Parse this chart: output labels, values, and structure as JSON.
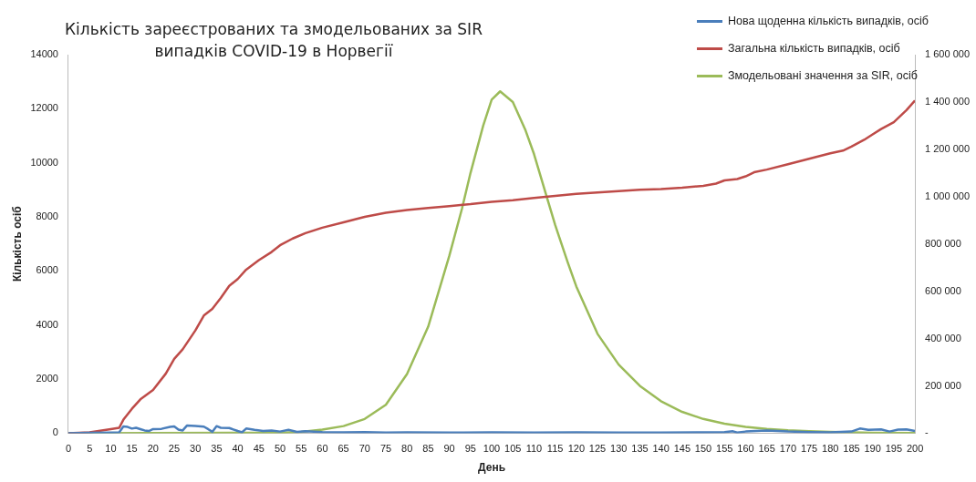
{
  "chart_data": {
    "type": "line",
    "title": "Кількість зареєстрованих та змодельованих за SIR\nвипадків COVID-19 в Норвегії",
    "xlabel": "День",
    "ylabel": "Кількість осіб",
    "xlim": [
      0,
      200
    ],
    "xticks": [
      0,
      5,
      10,
      15,
      20,
      25,
      30,
      35,
      40,
      45,
      50,
      55,
      60,
      65,
      70,
      75,
      80,
      85,
      90,
      95,
      100,
      105,
      110,
      115,
      120,
      125,
      130,
      135,
      140,
      145,
      150,
      155,
      160,
      165,
      170,
      175,
      180,
      185,
      190,
      195,
      200
    ],
    "ylim": [
      0,
      14000
    ],
    "yticks": [
      0,
      2000,
      4000,
      6000,
      8000,
      10000,
      12000,
      14000
    ],
    "y2lim": [
      0,
      1600000
    ],
    "y2ticks": [
      {
        "value": 0,
        "label": "-"
      },
      {
        "value": 200000,
        "label": "200 000"
      },
      {
        "value": 400000,
        "label": "400 000"
      },
      {
        "value": 600000,
        "label": "600 000"
      },
      {
        "value": 800000,
        "label": "800 000"
      },
      {
        "value": 1000000,
        "label": "1 000 000"
      },
      {
        "value": 1200000,
        "label": "1 200 000"
      },
      {
        "value": 1400000,
        "label": "1 400 000"
      },
      {
        "value": 1600000,
        "label": "1 600 000"
      }
    ],
    "grid": false,
    "legend": "top right",
    "marker": "none",
    "line_style": "solid",
    "series": [
      {
        "name": "Нова щоденна кількість випадків, осіб",
        "color": "#4a7ebb",
        "x": [
          0,
          5,
          10,
          12,
          13,
          14,
          15,
          16,
          17,
          18,
          19,
          20,
          22,
          24,
          25,
          26,
          27,
          28,
          30,
          32,
          33,
          34,
          35,
          36,
          38,
          40,
          41,
          42,
          44,
          46,
          48,
          50,
          52,
          54,
          56,
          60,
          65,
          70,
          75,
          80,
          90,
          100,
          110,
          120,
          130,
          140,
          150,
          155,
          157,
          158,
          160,
          165,
          170,
          175,
          180,
          185,
          187,
          189,
          192,
          194,
          196,
          198,
          200
        ],
        "values": [
          0,
          10,
          20,
          30,
          250,
          230,
          170,
          200,
          150,
          100,
          80,
          150,
          160,
          230,
          250,
          130,
          100,
          280,
          270,
          240,
          150,
          50,
          260,
          200,
          190,
          80,
          30,
          170,
          120,
          80,
          100,
          60,
          120,
          50,
          70,
          40,
          30,
          40,
          20,
          30,
          20,
          30,
          20,
          30,
          20,
          20,
          30,
          40,
          70,
          20,
          60,
          100,
          60,
          40,
          30,
          60,
          170,
          120,
          140,
          60,
          130,
          140,
          80
        ]
      },
      {
        "name": "Загальна кількість випадків, осіб",
        "color": "#be4b48",
        "x": [
          0,
          5,
          10,
          12,
          13,
          15,
          17,
          20,
          23,
          25,
          27,
          30,
          32,
          34,
          36,
          38,
          40,
          42,
          45,
          48,
          50,
          53,
          56,
          60,
          65,
          70,
          75,
          80,
          85,
          90,
          95,
          100,
          105,
          110,
          115,
          120,
          125,
          130,
          135,
          140,
          145,
          150,
          153,
          155,
          158,
          160,
          162,
          165,
          170,
          175,
          180,
          183,
          185,
          188,
          190,
          192,
          195,
          198,
          200
        ],
        "values": [
          0,
          30,
          150,
          200,
          500,
          900,
          1250,
          1600,
          2200,
          2750,
          3100,
          3800,
          4350,
          4600,
          5000,
          5450,
          5700,
          6050,
          6400,
          6700,
          6950,
          7200,
          7400,
          7600,
          7800,
          8000,
          8150,
          8250,
          8330,
          8400,
          8470,
          8560,
          8620,
          8700,
          8780,
          8850,
          8900,
          8950,
          9000,
          9030,
          9080,
          9150,
          9230,
          9350,
          9400,
          9500,
          9650,
          9750,
          9950,
          10150,
          10350,
          10450,
          10600,
          10850,
          11050,
          11250,
          11500,
          11950,
          12300
        ]
      },
      {
        "name": "Змодельовані значення за SIR, осіб",
        "color": "#9bbb59",
        "axis": "y2",
        "x": [
          0,
          50,
          55,
          60,
          65,
          70,
          75,
          80,
          85,
          90,
          93,
          95,
          98,
          100,
          102,
          105,
          108,
          110,
          113,
          115,
          118,
          120,
          125,
          130,
          135,
          140,
          145,
          150,
          155,
          160,
          165,
          170,
          175,
          180,
          190,
          200
        ],
        "values": [
          0,
          2000,
          5000,
          15000,
          30000,
          60000,
          120000,
          250000,
          450000,
          750000,
          950000,
          1100000,
          1300000,
          1410000,
          1445000,
          1400000,
          1280000,
          1180000,
          1000000,
          880000,
          720000,
          620000,
          420000,
          290000,
          200000,
          135000,
          90000,
          60000,
          40000,
          27000,
          18000,
          12000,
          8000,
          5000,
          2000,
          1000
        ]
      }
    ]
  }
}
